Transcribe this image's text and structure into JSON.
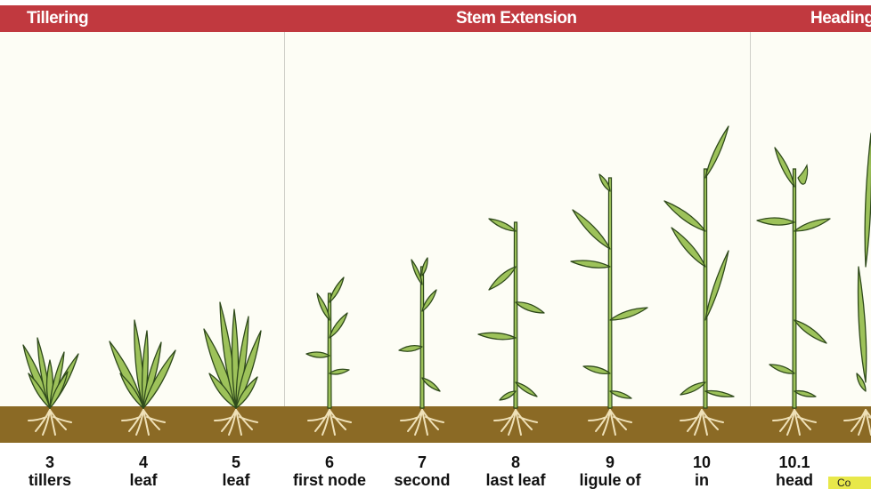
{
  "sections": [
    {
      "label": "Tillering"
    },
    {
      "label": "Stem Extension"
    },
    {
      "label": "Heading"
    }
  ],
  "stages": [
    {
      "number": "3",
      "description": "tillers"
    },
    {
      "number": "4",
      "description": "leaf"
    },
    {
      "number": "5",
      "description": "leaf"
    },
    {
      "number": "6",
      "description": "first node"
    },
    {
      "number": "7",
      "description": "second"
    },
    {
      "number": "8",
      "description": "last leaf"
    },
    {
      "number": "9",
      "description": "ligule of"
    },
    {
      "number": "10",
      "description": "in"
    },
    {
      "number": "10.1",
      "description": "head"
    }
  ],
  "legend_chip": {
    "text": "Co"
  },
  "colors": {
    "header": "#c1393f",
    "soil": "#8b6a25",
    "plant_fill": "#9dc25a",
    "plant_stroke": "#2f4a1b",
    "roots": "#efe1b8"
  }
}
